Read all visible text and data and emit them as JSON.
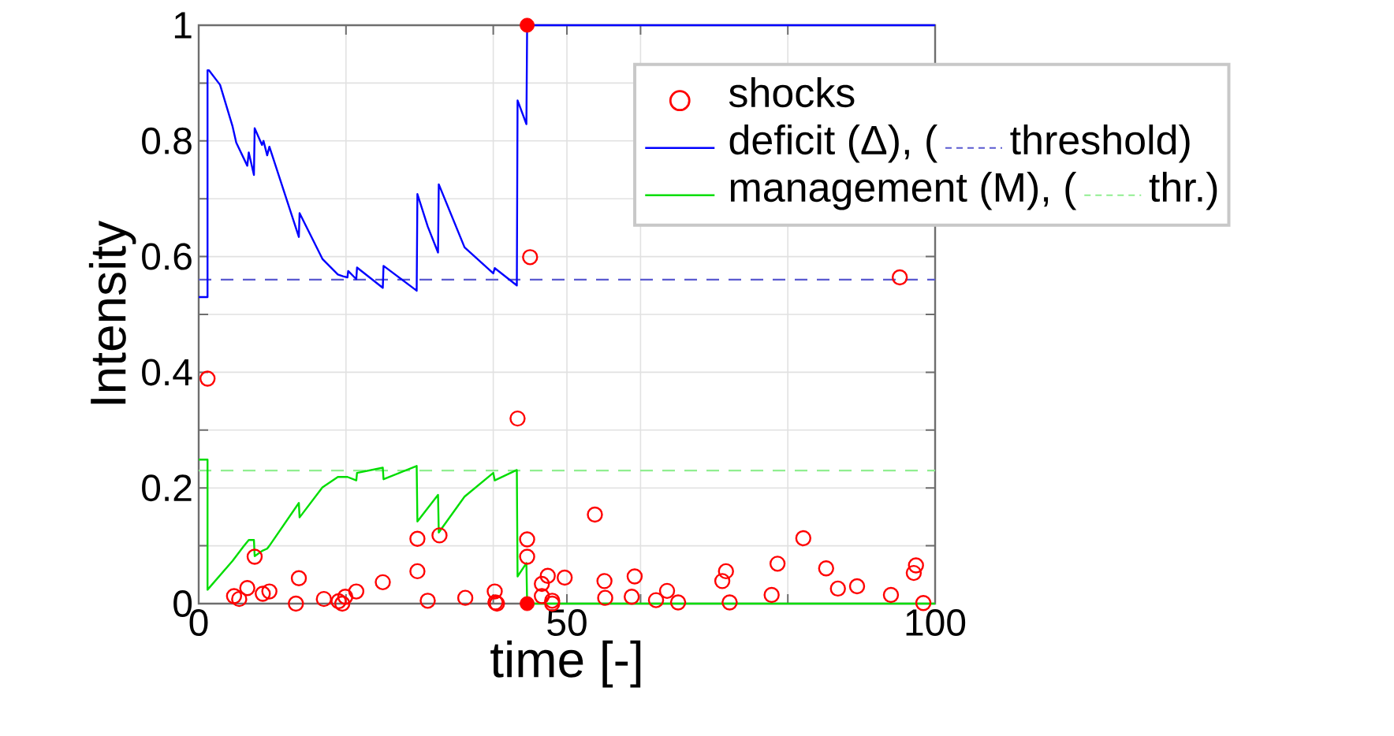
{
  "chart_data": {
    "type": "line",
    "xlabel": "time [-]",
    "ylabel": "Intensity",
    "xlim": [
      0,
      100
    ],
    "ylim": [
      0,
      1
    ],
    "xticks": [
      0,
      {
        "value": 20,
        "label": null
      },
      {
        "value": 40,
        "label": null
      },
      50,
      {
        "value": 60,
        "label": null
      },
      {
        "value": 80,
        "label": null
      },
      100
    ],
    "yticks": [
      0,
      {
        "value": 0.1,
        "label": null
      },
      0.2,
      {
        "value": 0.3,
        "label": null
      },
      0.4,
      {
        "value": 0.5,
        "label": null
      },
      0.6,
      {
        "value": 0.7,
        "label": null
      },
      0.8,
      {
        "value": 0.9,
        "label": null
      },
      1
    ],
    "grid": true,
    "legend": "top right",
    "series": [
      {
        "name": "shocks",
        "type": "scatter",
        "marker": "circle",
        "color": "#ff0000",
        "x": [
          1.2,
          4.8,
          5.5,
          6.6,
          7.6,
          8.7,
          9.6,
          13.6,
          13.2,
          17.0,
          19.0,
          19.5,
          19.9,
          21.4,
          25.0,
          29.7,
          29.7,
          31.1,
          32.7,
          36.2,
          40.2,
          40.3,
          40.5,
          43.3,
          44.6,
          44.6,
          45.0,
          46.6,
          47.4,
          46.6,
          48.0,
          48.0,
          49.7,
          53.8,
          55.1,
          55.2,
          58.8,
          59.2,
          62.1,
          63.6,
          65.1,
          71.1,
          71.6,
          72.1,
          77.8,
          78.6,
          82.1,
          85.2,
          86.8,
          89.4,
          94.0,
          95.2,
          97.1,
          97.4,
          98.4
        ],
        "values": [
          0.389,
          0.013,
          0.008,
          0.027,
          0.081,
          0.017,
          0.021,
          0.044,
          0.0,
          0.008,
          0.004,
          0.0,
          0.012,
          0.021,
          0.037,
          0.112,
          0.056,
          0.005,
          0.118,
          0.01,
          0.021,
          0.002,
          0.0,
          0.32,
          0.111,
          0.081,
          0.599,
          0.034,
          0.048,
          0.013,
          0.0,
          0.005,
          0.045,
          0.154,
          0.039,
          0.01,
          0.012,
          0.047,
          0.006,
          0.022,
          0.002,
          0.039,
          0.056,
          0.002,
          0.015,
          0.069,
          0.113,
          0.061,
          0.026,
          0.03,
          0.015,
          0.564,
          0.053,
          0.066,
          0.001
        ]
      },
      {
        "name": "deficit (Δ), (",
        "color": "#0000ff",
        "x": [
          0,
          1.2,
          1.2,
          1.4,
          2.9,
          4.6,
          5.1,
          6.6,
          6.8,
          7.5,
          7.6,
          8.6,
          8.8,
          9.3,
          9.6,
          13.6,
          13.7,
          16.8,
          18.9,
          19.6,
          20.2,
          20.3,
          21.4,
          21.5,
          25.0,
          25.1,
          29.6,
          29.7,
          31.1,
          32.5,
          32.6,
          36.1,
          40.0,
          40.2,
          43.2,
          43.3,
          44.5,
          44.6,
          100
        ],
        "values": [
          0.53,
          0.53,
          0.922,
          0.922,
          0.897,
          0.825,
          0.797,
          0.757,
          0.78,
          0.741,
          0.822,
          0.793,
          0.8,
          0.775,
          0.79,
          0.634,
          0.675,
          0.596,
          0.569,
          0.566,
          0.564,
          0.575,
          0.561,
          0.581,
          0.546,
          0.584,
          0.541,
          0.708,
          0.652,
          0.607,
          0.725,
          0.616,
          0.571,
          0.58,
          0.55,
          0.87,
          0.829,
          1.0,
          1.0
        ]
      },
      {
        "name": "management (M), (",
        "color": "#00dd00",
        "x": [
          0,
          1.2,
          1.2,
          4.6,
          6.1,
          6.8,
          7.5,
          7.6,
          8.6,
          9.3,
          9.6,
          13.6,
          13.7,
          16.8,
          18.9,
          20.2,
          21.4,
          21.5,
          25.0,
          25.1,
          29.6,
          29.7,
          32.5,
          32.6,
          36.1,
          40.0,
          40.2,
          43.2,
          43.3,
          44.5,
          44.6,
          100
        ],
        "values": [
          0.249,
          0.249,
          0.024,
          0.074,
          0.099,
          0.11,
          0.11,
          0.082,
          0.091,
          0.095,
          0.1,
          0.174,
          0.149,
          0.201,
          0.219,
          0.219,
          0.213,
          0.226,
          0.235,
          0.215,
          0.238,
          0.142,
          0.188,
          0.123,
          0.185,
          0.226,
          0.213,
          0.231,
          0.047,
          0.07,
          0.0,
          0.0
        ]
      },
      {
        "type": "scatter",
        "marker": "circle",
        "color": "#ff0000",
        "x": [
          44.6,
          44.6
        ],
        "values": [
          1.0,
          0.0
        ]
      }
    ],
    "ref_lines": [
      {
        "axis": "y",
        "value": 0.56,
        "label": "threshold)",
        "color": "#5a5ad0",
        "line_style": "dashed"
      },
      {
        "axis": "y",
        "value": 0.23,
        "label": "thr.)",
        "color": "#90ee90",
        "line_style": "dashed"
      }
    ]
  }
}
